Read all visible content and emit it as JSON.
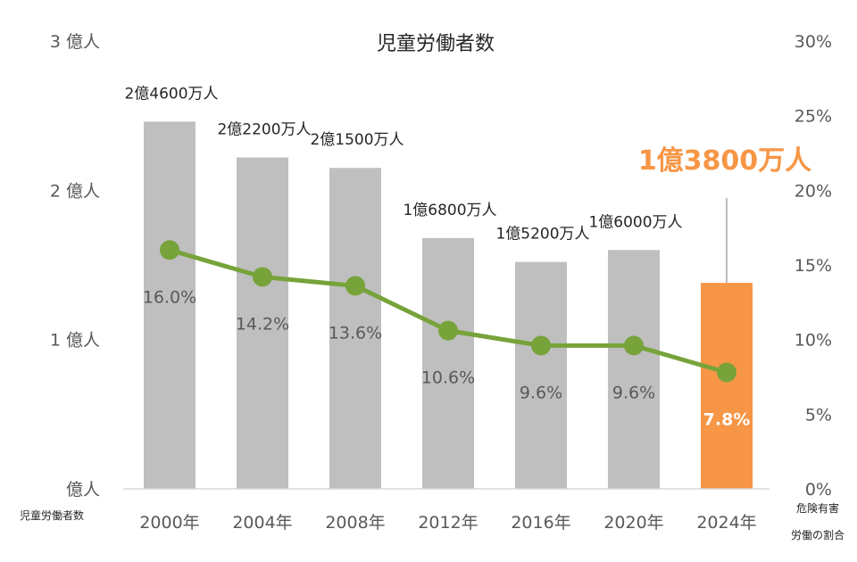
{
  "chart_data": {
    "type": "bar",
    "title": "児童労働者数",
    "categories": [
      "2000年",
      "2004年",
      "2008年",
      "2012年",
      "2016年",
      "2020年",
      "2024年"
    ],
    "series": [
      {
        "values": [
          246,
          222,
          215,
          168,
          152,
          160,
          138
        ],
        "unit": "百万人",
        "data_labels": [
          "2億4600万人",
          "2億2200万人",
          "2億1500万人",
          "1億6800万人",
          "1億5200万人",
          "1億6000万人",
          "1億3800万人"
        ],
        "color": "#BFBFBF",
        "highlight_index": 6,
        "highlight_color": "#F79646"
      },
      {
        "values": [
          16.0,
          14.2,
          13.6,
          10.6,
          9.6,
          9.6,
          7.8
        ],
        "data_labels": [
          "16.0%",
          "14.2%",
          "13.6%",
          "10.6%",
          "9.6%",
          "9.6%",
          "7.8%"
        ],
        "type": "line",
        "color": "#77A33A",
        "axis": "right"
      }
    ],
    "y_left": {
      "ticks": [
        "億人",
        "1 億人",
        "2 億人",
        "3 億人"
      ],
      "ylim": [
        0,
        300
      ],
      "label": "児童労働者数"
    },
    "y_right": {
      "ticks": [
        "0%",
        "5%",
        "10%",
        "15%",
        "20%",
        "25%",
        "30%"
      ],
      "ylim": [
        0,
        30
      ],
      "label_lines": [
        "危険有害",
        "労働の割合"
      ]
    },
    "grid": false,
    "legend": "none"
  }
}
